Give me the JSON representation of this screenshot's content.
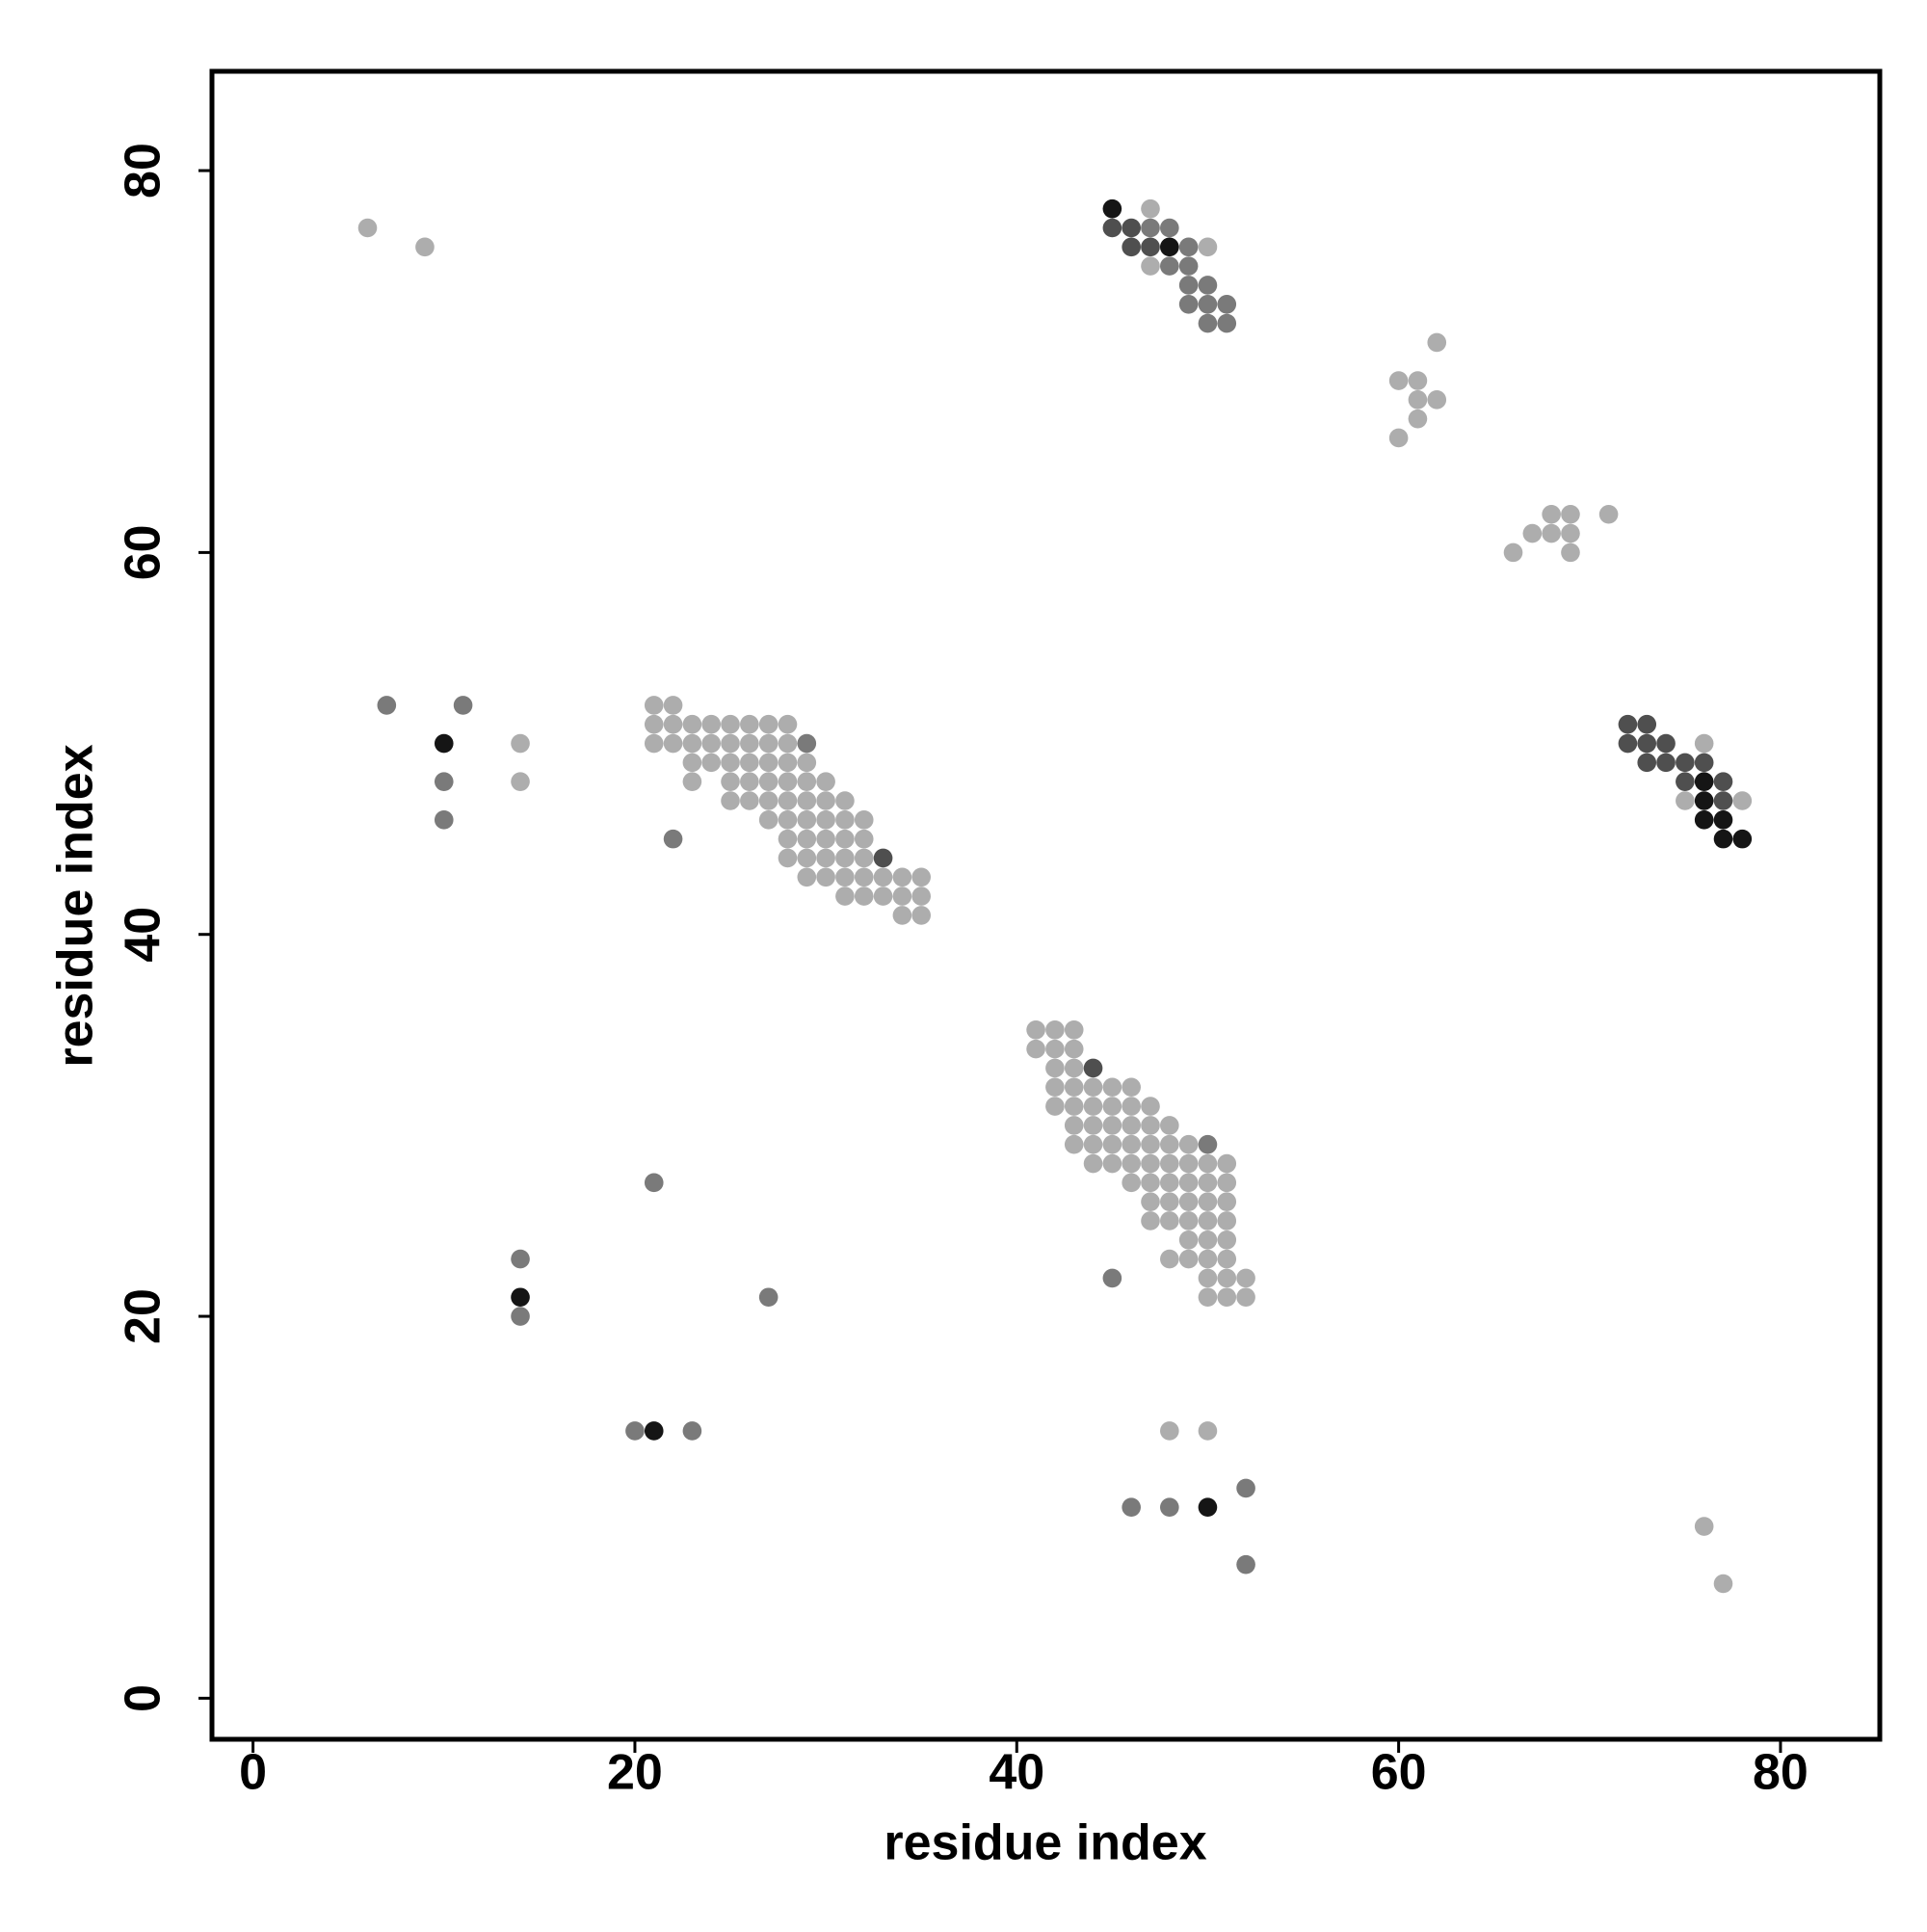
{
  "chart_data": {
    "type": "scatter",
    "x_label": "residue index",
    "y_label": "residue index",
    "xlim": [
      -2.15,
      85.2
    ],
    "ylim": [
      -2.15,
      85.2
    ],
    "xticks": [
      0,
      20,
      40,
      60,
      80
    ],
    "yticks": [
      0,
      20,
      40,
      60,
      80
    ],
    "grid": false,
    "series": [
      {
        "color": "#adadad",
        "x": [
          6,
          9,
          47,
          50,
          47,
          62,
          60,
          61,
          61,
          62,
          61,
          60,
          68,
          71,
          67,
          68,
          69,
          66,
          69,
          14,
          14,
          76,
          75,
          78,
          69,
          21,
          22,
          21,
          22,
          23,
          24,
          25,
          26,
          27,
          28,
          21,
          22,
          23,
          24,
          25,
          26,
          27,
          28,
          23,
          24,
          25,
          26,
          27,
          28,
          29,
          23,
          25,
          26,
          27,
          28,
          29,
          30,
          25,
          26,
          27,
          28,
          29,
          30,
          31,
          27,
          28,
          29,
          30,
          31,
          32,
          28,
          29,
          30,
          31,
          32,
          28,
          29,
          30,
          31,
          32,
          29,
          30,
          31,
          32,
          33,
          34,
          35,
          31,
          32,
          33,
          34,
          35,
          34,
          35,
          41,
          42,
          43,
          41,
          42,
          43,
          42,
          43,
          42,
          43,
          44,
          45,
          46,
          42,
          43,
          44,
          45,
          46,
          47,
          43,
          44,
          45,
          46,
          47,
          48,
          43,
          44,
          45,
          46,
          47,
          48,
          49,
          44,
          45,
          46,
          47,
          48,
          49,
          50,
          51,
          46,
          47,
          48,
          49,
          50,
          51,
          47,
          48,
          49,
          50,
          51,
          47,
          48,
          49,
          50,
          51,
          49,
          50,
          51,
          48,
          49,
          50,
          51,
          50,
          51,
          52,
          50,
          51,
          52,
          48,
          50,
          76,
          77
        ],
        "values": [
          77,
          76,
          78,
          76,
          75,
          71,
          69,
          69,
          68,
          68,
          67,
          66,
          62,
          62,
          61,
          61,
          61,
          60,
          60,
          50,
          48,
          50,
          47,
          47,
          62,
          52,
          52,
          51,
          51,
          51,
          51,
          51,
          51,
          51,
          51,
          50,
          50,
          50,
          50,
          50,
          50,
          50,
          50,
          49,
          49,
          49,
          49,
          49,
          49,
          49,
          48,
          48,
          48,
          48,
          48,
          48,
          48,
          47,
          47,
          47,
          47,
          47,
          47,
          47,
          46,
          46,
          46,
          46,
          46,
          46,
          45,
          45,
          45,
          45,
          45,
          44,
          44,
          44,
          44,
          44,
          43,
          43,
          43,
          43,
          43,
          43,
          43,
          42,
          42,
          42,
          42,
          42,
          41,
          41,
          35,
          35,
          35,
          34,
          34,
          34,
          33,
          33,
          32,
          32,
          32,
          32,
          32,
          31,
          31,
          31,
          31,
          31,
          31,
          30,
          30,
          30,
          30,
          30,
          30,
          29,
          29,
          29,
          29,
          29,
          29,
          29,
          28,
          28,
          28,
          28,
          28,
          28,
          28,
          28,
          27,
          27,
          27,
          27,
          27,
          27,
          26,
          26,
          26,
          26,
          26,
          25,
          25,
          25,
          25,
          25,
          24,
          24,
          24,
          23,
          23,
          23,
          23,
          22,
          22,
          22,
          21,
          21,
          21,
          14,
          14,
          9,
          6
        ]
      },
      {
        "color": "#7a7a7a",
        "x": [
          47,
          48,
          49,
          48,
          49,
          49,
          50,
          49,
          50,
          51,
          50,
          51,
          7,
          11,
          10,
          10,
          29,
          22,
          50,
          45,
          21,
          14,
          14,
          27,
          20,
          23,
          52,
          46,
          48,
          52
        ],
        "values": [
          77,
          77,
          76,
          75,
          75,
          74,
          74,
          73,
          73,
          73,
          72,
          72,
          52,
          52,
          48,
          46,
          50,
          45,
          29,
          22,
          27,
          23,
          20,
          21,
          14,
          14,
          11,
          10,
          10,
          7
        ]
      },
      {
        "color": "#4f4f4f",
        "x": [
          45,
          46,
          46,
          47,
          72,
          73,
          72,
          73,
          74,
          73,
          74,
          75,
          76,
          75,
          77,
          77,
          33,
          44
        ],
        "values": [
          77,
          77,
          76,
          76,
          51,
          51,
          50,
          50,
          50,
          49,
          49,
          49,
          49,
          48,
          48,
          47,
          44,
          33
        ]
      },
      {
        "color": "#151515",
        "x": [
          45,
          48,
          10,
          76,
          76,
          76,
          77,
          77,
          78,
          14,
          21,
          50
        ],
        "values": [
          78,
          76,
          50,
          48,
          47,
          46,
          46,
          45,
          45,
          21,
          14,
          10
        ]
      }
    ]
  }
}
